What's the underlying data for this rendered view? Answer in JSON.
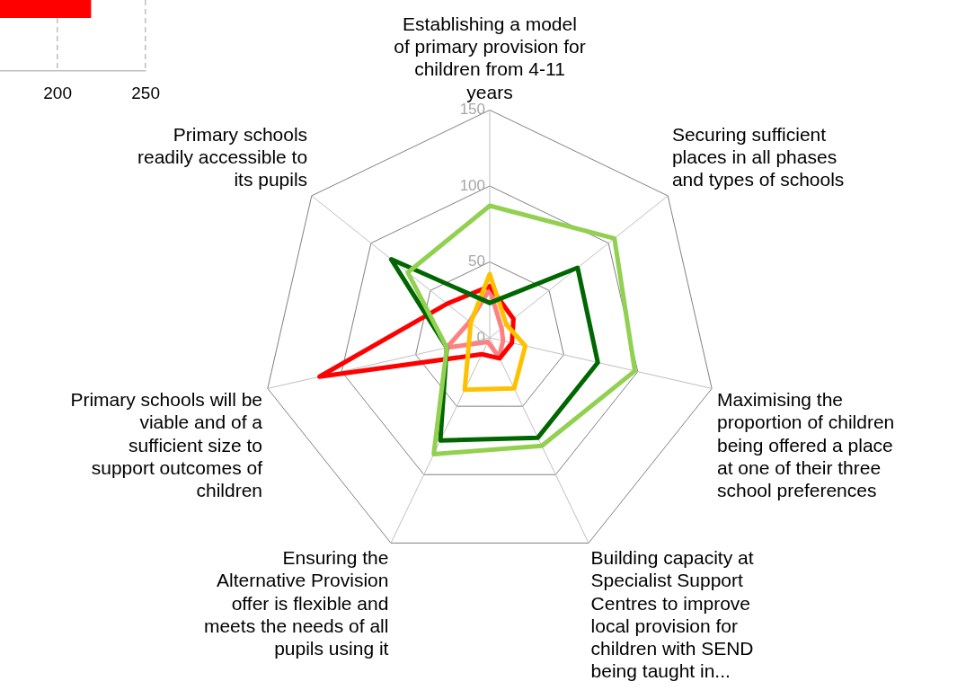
{
  "chart_data": [
    {
      "type": "bar",
      "orientation": "horizontal",
      "categories": [
        null
      ],
      "values": [
        219
      ],
      "color": "#ff0000",
      "xlim": [
        0,
        250
      ],
      "xticks": [
        200,
        250
      ],
      "grid": "x"
    },
    {
      "type": "radar",
      "categories": [
        "Establishing a model of primary provision for children from 4-11 years",
        "Securing sufficient places in all phases and types of schools",
        "Maximising the proportion of children being offered a place at one of their three school preferences",
        "Building capacity at Specialist Support Centres to improve local provision for children with SEND being taught in...",
        "Ensuring the Alternative Provision offer is flexible and meets the needs of all pupils using it",
        "Primary schools will be viable and of a sufficient size to support outcomes of children",
        "Primary schools readily accessible to its pupils"
      ],
      "series": [
        {
          "color": "#92d050",
          "values": [
            87,
            105,
            98,
            79,
            85,
            29,
            69
          ]
        },
        {
          "color": "#006600",
          "values": [
            23,
            74,
            73,
            73,
            75,
            29,
            83
          ]
        },
        {
          "color": "#ffc000",
          "values": [
            42,
            14,
            24,
            37,
            38,
            14,
            16
          ]
        },
        {
          "color": "#ff0000",
          "values": [
            34,
            20,
            15,
            15,
            12,
            115,
            36
          ]
        },
        {
          "color": "#ff8080",
          "values": [
            32,
            10,
            9,
            14,
            3,
            29,
            17
          ]
        }
      ],
      "ylim": [
        0,
        150
      ],
      "yticks": [
        0,
        50,
        100,
        150
      ],
      "grid": true,
      "legend": false
    }
  ]
}
